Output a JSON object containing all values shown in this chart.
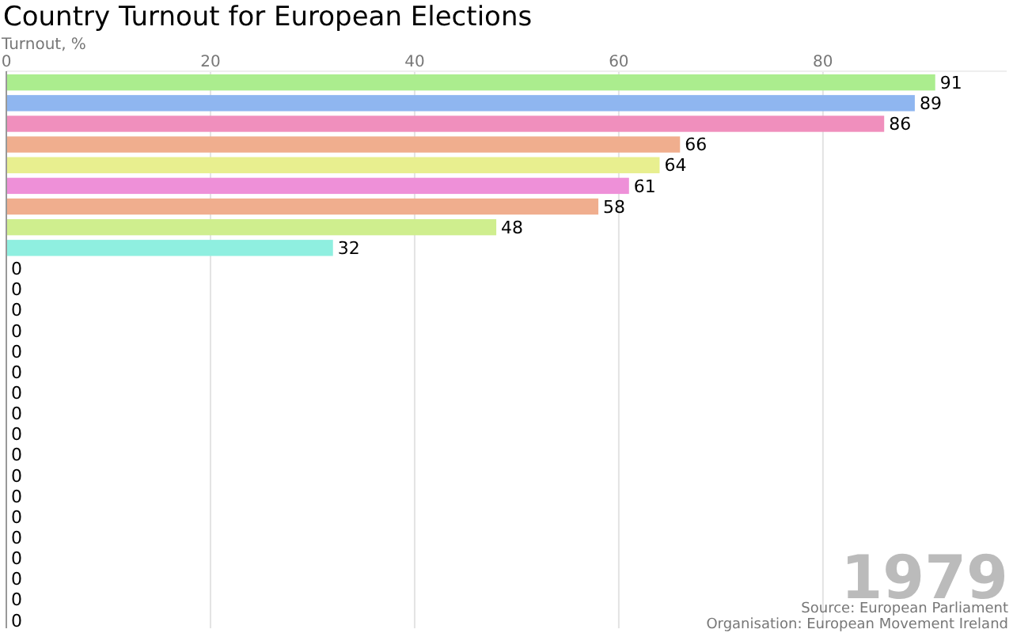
{
  "chart_data": {
    "type": "bar",
    "orientation": "horizontal",
    "title": "Country Turnout for European Elections",
    "xlabel": "Turnout, %",
    "categories": [
      null,
      null,
      null,
      null,
      null,
      null,
      null,
      null,
      null,
      null,
      null,
      null,
      null,
      null,
      null,
      null,
      null,
      null,
      null,
      null,
      null,
      null,
      null,
      null,
      null,
      null,
      null
    ],
    "values": [
      91,
      89,
      86,
      66,
      64,
      61,
      58,
      48,
      32,
      0,
      0,
      0,
      0,
      0,
      0,
      0,
      0,
      0,
      0,
      0,
      0,
      0,
      0,
      0,
      0,
      0,
      0
    ],
    "colors": [
      "#abed8e",
      "#8fb6f0",
      "#f08fbd",
      "#f0ae8e",
      "#e8ef8f",
      "#ee90d8",
      "#f0ae8e",
      "#cfee8e",
      "#8fefe0",
      "#cccccc",
      "#cccccc",
      "#cccccc",
      "#cccccc",
      "#cccccc",
      "#cccccc",
      "#cccccc",
      "#cccccc",
      "#cccccc",
      "#cccccc",
      "#cccccc",
      "#cccccc",
      "#cccccc",
      "#cccccc",
      "#cccccc",
      "#cccccc",
      "#cccccc",
      "#cccccc"
    ],
    "xlim": [
      0,
      98
    ],
    "xticks": [
      0,
      20,
      40,
      60,
      80
    ],
    "grid": "x",
    "data_labels": true,
    "annotations": [
      "1979",
      "Source: European Parliament",
      "Organisation: European Movement Ireland"
    ]
  }
}
